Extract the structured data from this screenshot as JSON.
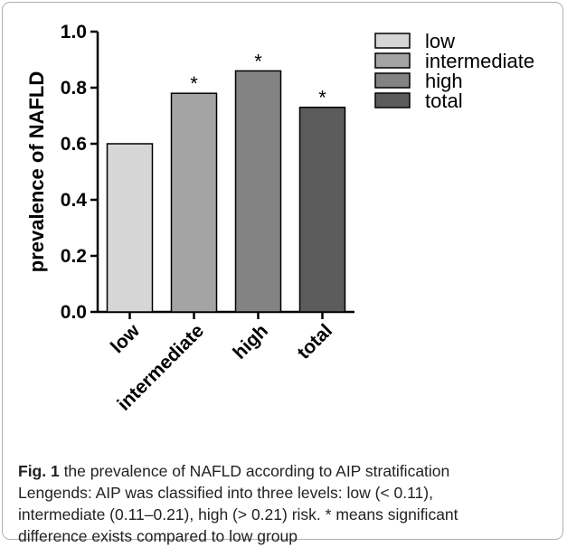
{
  "chart_data": {
    "type": "bar",
    "categories": [
      "low",
      "intermediate",
      "high",
      "total"
    ],
    "values": [
      0.6,
      0.78,
      0.86,
      0.73
    ],
    "significance": [
      "",
      "*",
      "*",
      "*"
    ],
    "colors": [
      "#d6d6d6",
      "#a4a4a4",
      "#838383",
      "#5c5c5c"
    ],
    "ylabel": "prevalence of NAFLD",
    "xlabel": "",
    "ylim": [
      0.0,
      1.0
    ],
    "yticks": [
      "0.0",
      "0.2",
      "0.4",
      "0.6",
      "0.8",
      "1.0"
    ],
    "legend": {
      "position": "top-right",
      "entries": [
        "low",
        "intermediate",
        "high",
        "total"
      ]
    },
    "grid": false
  },
  "caption": {
    "fig_label": "Fig. 1",
    "title": " the prevalence of NAFLD according to AIP stratification",
    "lines": [
      "Lengends: AIP was classified into three levels: low (< 0.11),",
      "intermediate (0.11–0.21), high (> 0.21) risk. * means significant",
      "difference exists compared to low group"
    ]
  }
}
